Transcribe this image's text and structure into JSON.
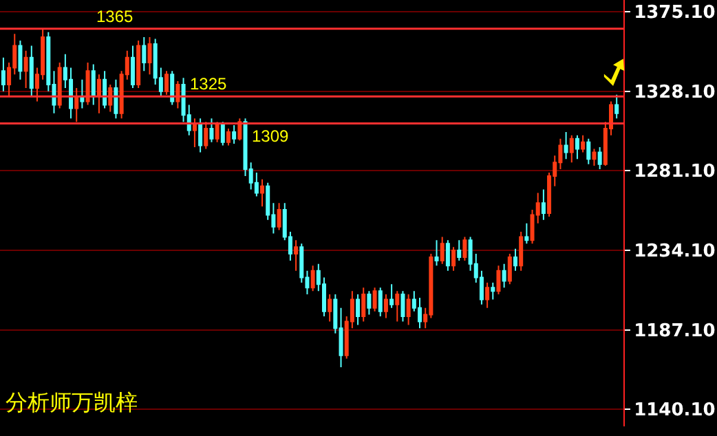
{
  "chart_data": {
    "type": "candlestick",
    "categories": [
      null,
      null,
      null,
      null,
      null,
      null,
      null,
      null,
      null,
      null,
      null,
      null,
      null,
      null,
      null,
      null,
      null,
      null,
      null,
      null,
      null,
      null,
      null,
      null,
      null,
      null,
      null,
      null,
      null,
      null,
      null,
      null,
      null,
      null,
      null,
      null,
      null,
      null,
      null,
      null,
      null,
      null,
      null,
      null,
      null,
      null,
      null,
      null,
      null,
      null,
      null,
      null,
      null,
      null,
      null,
      null,
      null,
      null,
      null,
      null,
      null,
      null,
      null,
      null,
      null,
      null,
      null,
      null,
      null,
      null,
      null,
      null,
      null,
      null,
      null,
      null,
      null,
      null,
      null,
      null,
      null,
      null,
      null,
      null,
      null,
      null,
      null,
      null,
      null,
      null,
      null,
      null,
      null,
      null,
      null,
      null,
      null,
      null,
      null,
      null,
      null,
      null,
      null,
      null,
      null,
      null,
      null,
      null,
      null,
      null
    ],
    "ohlc": [
      [
        1340,
        1348,
        1328,
        1332
      ],
      [
        1332,
        1345,
        1325,
        1342
      ],
      [
        1342,
        1362,
        1338,
        1355
      ],
      [
        1355,
        1358,
        1335,
        1340
      ],
      [
        1340,
        1352,
        1330,
        1348
      ],
      [
        1348,
        1355,
        1325,
        1330
      ],
      [
        1330,
        1342,
        1322,
        1338
      ],
      [
        1338,
        1365,
        1335,
        1360
      ],
      [
        1360,
        1363,
        1328,
        1332
      ],
      [
        1332,
        1340,
        1315,
        1320
      ],
      [
        1320,
        1345,
        1318,
        1342
      ],
      [
        1342,
        1350,
        1330,
        1335
      ],
      [
        1335,
        1342,
        1312,
        1318
      ],
      [
        1318,
        1330,
        1310,
        1325
      ],
      [
        1325,
        1335,
        1318,
        1322
      ],
      [
        1322,
        1345,
        1320,
        1340
      ],
      [
        1340,
        1344,
        1320,
        1325
      ],
      [
        1325,
        1338,
        1315,
        1335
      ],
      [
        1335,
        1340,
        1318,
        1320
      ],
      [
        1320,
        1332,
        1316,
        1330
      ],
      [
        1330,
        1335,
        1312,
        1315
      ],
      [
        1315,
        1340,
        1312,
        1338
      ],
      [
        1338,
        1352,
        1335,
        1348
      ],
      [
        1348,
        1355,
        1330,
        1332
      ],
      [
        1332,
        1358,
        1330,
        1355
      ],
      [
        1355,
        1360,
        1340,
        1345
      ],
      [
        1345,
        1360,
        1338,
        1356
      ],
      [
        1356,
        1359,
        1332,
        1336
      ],
      [
        1336,
        1342,
        1325,
        1328
      ],
      [
        1328,
        1340,
        1326,
        1338
      ],
      [
        1338,
        1340,
        1320,
        1322
      ],
      [
        1322,
        1334,
        1318,
        1332
      ],
      [
        1332,
        1336,
        1310,
        1314
      ],
      [
        1314,
        1320,
        1302,
        1305
      ],
      [
        1305,
        1312,
        1295,
        1308
      ],
      [
        1308,
        1312,
        1292,
        1296
      ],
      [
        1296,
        1310,
        1294,
        1306
      ],
      [
        1306,
        1312,
        1298,
        1300
      ],
      [
        1300,
        1310,
        1298,
        1308
      ],
      [
        1308,
        1310,
        1296,
        1298
      ],
      [
        1298,
        1306,
        1296,
        1304
      ],
      [
        1304,
        1308,
        1297,
        1300
      ],
      [
        1300,
        1312,
        1299,
        1310
      ],
      [
        1310,
        1312,
        1278,
        1282
      ],
      [
        1282,
        1286,
        1270,
        1274
      ],
      [
        1274,
        1280,
        1266,
        1268
      ],
      [
        1268,
        1276,
        1260,
        1272
      ],
      [
        1272,
        1274,
        1252,
        1255
      ],
      [
        1255,
        1262,
        1244,
        1248
      ],
      [
        1248,
        1262,
        1246,
        1258
      ],
      [
        1258,
        1262,
        1240,
        1242
      ],
      [
        1242,
        1245,
        1228,
        1232
      ],
      [
        1232,
        1240,
        1222,
        1236
      ],
      [
        1236,
        1238,
        1215,
        1218
      ],
      [
        1218,
        1222,
        1208,
        1212
      ],
      [
        1212,
        1225,
        1210,
        1222
      ],
      [
        1222,
        1226,
        1210,
        1214
      ],
      [
        1214,
        1218,
        1195,
        1198
      ],
      [
        1198,
        1208,
        1192,
        1205
      ],
      [
        1205,
        1208,
        1185,
        1188
      ],
      [
        1188,
        1200,
        1165,
        1172
      ],
      [
        1172,
        1195,
        1170,
        1192
      ],
      [
        1192,
        1210,
        1188,
        1205
      ],
      [
        1205,
        1208,
        1190,
        1195
      ],
      [
        1195,
        1212,
        1192,
        1208
      ],
      [
        1208,
        1210,
        1196,
        1200
      ],
      [
        1200,
        1212,
        1198,
        1210
      ],
      [
        1210,
        1212,
        1195,
        1198
      ],
      [
        1198,
        1208,
        1194,
        1205
      ],
      [
        1205,
        1214,
        1200,
        1202
      ],
      [
        1202,
        1210,
        1192,
        1208
      ],
      [
        1208,
        1210,
        1192,
        1195
      ],
      [
        1195,
        1208,
        1190,
        1205
      ],
      [
        1205,
        1210,
        1198,
        1200
      ],
      [
        1200,
        1206,
        1188,
        1192
      ],
      [
        1192,
        1200,
        1188,
        1196
      ],
      [
        1196,
        1232,
        1194,
        1230
      ],
      [
        1230,
        1240,
        1225,
        1228
      ],
      [
        1228,
        1242,
        1226,
        1238
      ],
      [
        1238,
        1240,
        1222,
        1225
      ],
      [
        1225,
        1236,
        1222,
        1234
      ],
      [
        1234,
        1240,
        1228,
        1230
      ],
      [
        1230,
        1242,
        1228,
        1240
      ],
      [
        1240,
        1242,
        1222,
        1226
      ],
      [
        1226,
        1232,
        1215,
        1218
      ],
      [
        1218,
        1222,
        1202,
        1205
      ],
      [
        1205,
        1215,
        1200,
        1212
      ],
      [
        1212,
        1215,
        1205,
        1210
      ],
      [
        1210,
        1225,
        1208,
        1222
      ],
      [
        1222,
        1226,
        1212,
        1216
      ],
      [
        1216,
        1232,
        1214,
        1230
      ],
      [
        1230,
        1235,
        1222,
        1225
      ],
      [
        1225,
        1245,
        1222,
        1242
      ],
      [
        1242,
        1250,
        1238,
        1240
      ],
      [
        1240,
        1258,
        1238,
        1255
      ],
      [
        1255,
        1268,
        1250,
        1262
      ],
      [
        1262,
        1270,
        1252,
        1256
      ],
      [
        1256,
        1280,
        1254,
        1278
      ],
      [
        1278,
        1290,
        1272,
        1286
      ],
      [
        1286,
        1300,
        1282,
        1296
      ],
      [
        1296,
        1304,
        1288,
        1292
      ],
      [
        1292,
        1302,
        1286,
        1300
      ],
      [
        1300,
        1302,
        1288,
        1294
      ],
      [
        1294,
        1302,
        1292,
        1298
      ],
      [
        1298,
        1300,
        1285,
        1288
      ],
      [
        1288,
        1294,
        1284,
        1292
      ],
      [
        1292,
        1295,
        1282,
        1285
      ],
      [
        1285,
        1310,
        1284,
        1306
      ],
      [
        1306,
        1322,
        1302,
        1320
      ],
      [
        1320,
        1326,
        1312,
        1315
      ]
    ],
    "ylim": [
      1130,
      1382
    ],
    "yticks": [
      {
        "value": 1140.1,
        "label": "1140.10"
      },
      {
        "value": 1187.1,
        "label": "1187.10"
      },
      {
        "value": 1234.1,
        "label": "1234.10"
      },
      {
        "value": 1281.1,
        "label": "1281.10"
      },
      {
        "value": 1328.1,
        "label": "1328.10"
      },
      {
        "value": 1375.1,
        "label": "1375.10"
      }
    ],
    "grid": "y",
    "tick_labels": "y",
    "ref_lines": [
      {
        "axis": "y",
        "value": 1365,
        "label": "1365",
        "color": "#ff3030"
      },
      {
        "axis": "y",
        "value": 1325,
        "label": "1325",
        "color": "#ff3030"
      },
      {
        "axis": "y",
        "value": 1309,
        "label": "1309",
        "color": "#ff3030"
      }
    ],
    "annotations": [
      "分析师万凯梓"
    ]
  }
}
